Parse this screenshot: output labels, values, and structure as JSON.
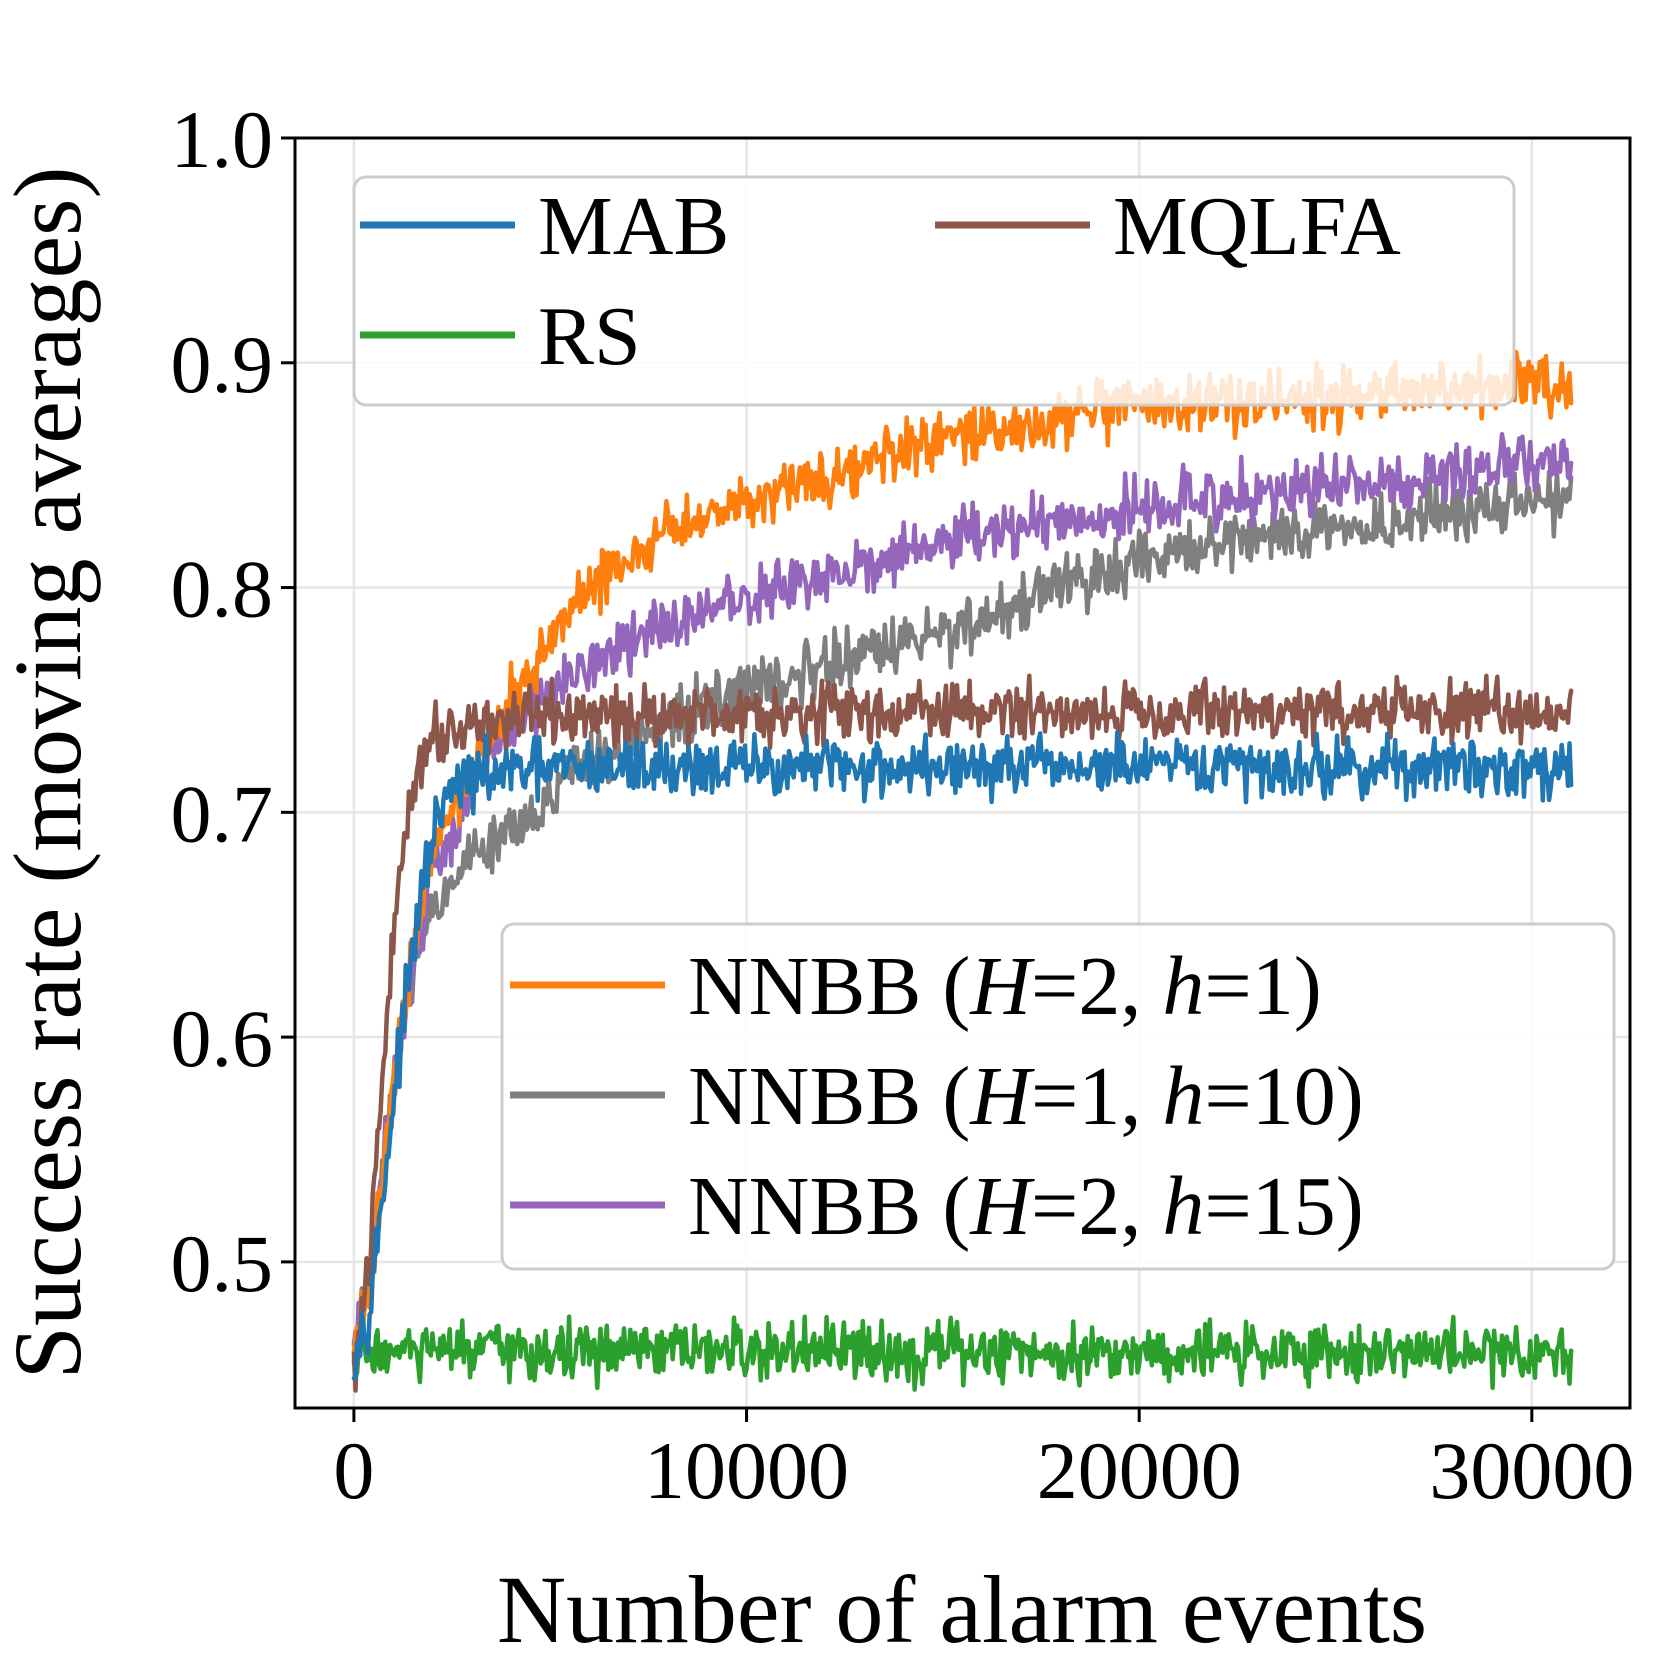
{
  "chart_data": {
    "type": "line",
    "title": "",
    "xlabel": "Number of alarm events",
    "ylabel": "Success rate (moving averages)",
    "xlim": [
      -1500,
      32500
    ],
    "ylim": [
      0.435,
      1.0
    ],
    "xticks": [
      0,
      10000,
      20000,
      30000
    ],
    "xtick_labels": [
      "0",
      "10000",
      "20000",
      "30000"
    ],
    "yticks": [
      0.5,
      0.6,
      0.7,
      0.8,
      0.9,
      1.0
    ],
    "ytick_labels": [
      "0.5",
      "0.6",
      "0.7",
      "0.8",
      "0.9",
      "1.0"
    ],
    "grid": true,
    "x_end": 31000,
    "noise_amplitude": 0.008,
    "series": [
      {
        "name": "MAB",
        "legend_label": "MAB",
        "color": "#1f77b4",
        "legend_group": "top",
        "x": [
          0,
          400,
          800,
          1200,
          1600,
          2000,
          2500,
          3000,
          4000,
          6000,
          10000,
          15000,
          20000,
          25000,
          31000
        ],
        "y": [
          0.46,
          0.48,
          0.54,
          0.6,
          0.65,
          0.69,
          0.71,
          0.715,
          0.718,
          0.72,
          0.72,
          0.72,
          0.72,
          0.72,
          0.72
        ]
      },
      {
        "name": "MQLFA",
        "legend_label": "MQLFA",
        "color": "#8c564b",
        "legend_group": "top",
        "x": [
          0,
          400,
          800,
          1200,
          1600,
          2000,
          3000,
          5000,
          10000,
          15000,
          20000,
          25000,
          31000
        ],
        "y": [
          0.45,
          0.5,
          0.6,
          0.68,
          0.72,
          0.735,
          0.74,
          0.742,
          0.745,
          0.745,
          0.745,
          0.745,
          0.745
        ]
      },
      {
        "name": "RS",
        "legend_label": "RS",
        "color": "#2ca02c",
        "legend_group": "top",
        "x": [
          0,
          31000
        ],
        "y": [
          0.46,
          0.46
        ]
      },
      {
        "name": "NNBB (H=2, h=1)",
        "legend_label": "NNBB (H=2, h=1)",
        "color": "#ff7f0e",
        "legend_group": "bottom",
        "legend_parts": [
          "NNBB (",
          "H",
          "=2,  ",
          "h",
          "=1)"
        ],
        "x": [
          0,
          400,
          800,
          1200,
          1600,
          2000,
          3000,
          4000,
          6000,
          8000,
          10000,
          12000,
          15000,
          18000,
          20000,
          25000,
          31000
        ],
        "y": [
          0.46,
          0.49,
          0.55,
          0.61,
          0.65,
          0.68,
          0.72,
          0.75,
          0.8,
          0.825,
          0.84,
          0.85,
          0.865,
          0.875,
          0.88,
          0.885,
          0.89
        ]
      },
      {
        "name": "NNBB (H=1, h=10)",
        "legend_label": "NNBB (H=1, h=10)",
        "color": "#7f7f7f",
        "legend_group": "bottom",
        "legend_parts": [
          "NNBB (",
          "H",
          "=1,  ",
          "h",
          "=10)"
        ],
        "x": [
          0,
          400,
          800,
          1200,
          1600,
          2000,
          3000,
          4000,
          6000,
          8000,
          10000,
          12000,
          15000,
          18000,
          20000,
          22000,
          25000,
          28000,
          31000
        ],
        "y": [
          0.46,
          0.49,
          0.55,
          0.6,
          0.64,
          0.66,
          0.68,
          0.695,
          0.72,
          0.74,
          0.755,
          0.765,
          0.78,
          0.8,
          0.81,
          0.82,
          0.825,
          0.835,
          0.84
        ]
      },
      {
        "name": "NNBB (H=2, h=15)",
        "legend_label": "NNBB (H=2, h=15)",
        "color": "#9467bd",
        "legend_group": "bottom",
        "legend_parts": [
          "NNBB (",
          "H",
          "=2,  ",
          "h",
          "=15)"
        ],
        "x": [
          0,
          400,
          800,
          1200,
          1600,
          2000,
          3000,
          4000,
          6000,
          8000,
          10000,
          12000,
          15000,
          20000,
          25000,
          31000
        ],
        "y": [
          0.46,
          0.49,
          0.55,
          0.6,
          0.64,
          0.67,
          0.71,
          0.74,
          0.765,
          0.785,
          0.795,
          0.805,
          0.82,
          0.835,
          0.845,
          0.855
        ]
      }
    ]
  }
}
